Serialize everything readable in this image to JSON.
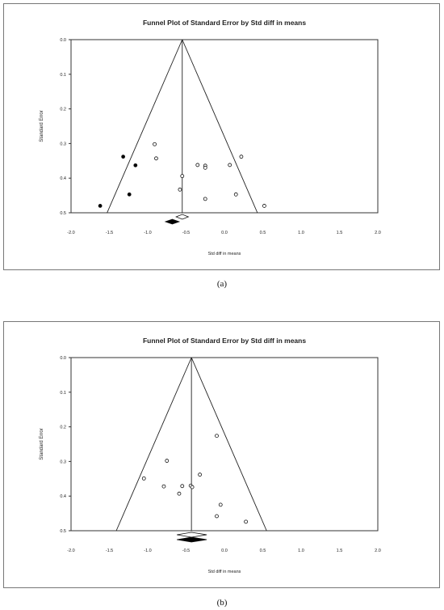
{
  "chart_data": [
    {
      "type": "scatter",
      "title": "Funnel Plot of Standard Error by Std diff in means",
      "xlabel": "Std diff in means",
      "ylabel": "Standard Error",
      "xlim": [
        -2.0,
        2.0
      ],
      "ylim": [
        0.0,
        0.5
      ],
      "y_inverted": true,
      "xticks": [
        "-2.0",
        "-1.5",
        "-1.0",
        "-0.5",
        "0.0",
        "0.5",
        "1.0",
        "1.5",
        "2.0"
      ],
      "yticks": [
        "0.0",
        "0.1",
        "0.2",
        "0.3",
        "0.4",
        "0.5"
      ],
      "grid": false,
      "summary_effect": -0.55,
      "funnel_base": [
        -1.53,
        0.43
      ],
      "summary_diamond_observed": {
        "center": -0.55,
        "low": -0.63,
        "high": -0.47,
        "fill": "#ffffff"
      },
      "summary_diamond_imputed": {
        "center": -0.68,
        "low": -0.77,
        "high": -0.59,
        "fill": "#000000"
      },
      "series": [
        {
          "style": "open",
          "x": [
            -0.91,
            -0.89,
            -0.35,
            -0.25,
            -0.25,
            -0.55,
            -0.58,
            -0.25,
            0.07,
            0.22,
            0.15,
            0.52
          ],
          "y": [
            0.302,
            0.343,
            0.362,
            0.364,
            0.37,
            0.394,
            0.433,
            0.46,
            0.362,
            0.338,
            0.447,
            0.48
          ]
        },
        {
          "style": "filled",
          "x": [
            -1.32,
            -1.16,
            -1.24,
            -1.62
          ],
          "y": [
            0.338,
            0.363,
            0.447,
            0.48
          ]
        }
      ]
    },
    {
      "type": "scatter",
      "title": "Funnel Plot of Standard Error by Std diff in means",
      "xlabel": "Std diff in means",
      "ylabel": "Standard Error",
      "xlim": [
        -2.0,
        2.0
      ],
      "ylim": [
        0.0,
        0.5
      ],
      "y_inverted": true,
      "xticks": [
        "-2.0",
        "-1.5",
        "-1.0",
        "-0.5",
        "0.0",
        "0.5",
        "1.0",
        "1.5",
        "2.0"
      ],
      "yticks": [
        "0.0",
        "0.1",
        "0.2",
        "0.3",
        "0.4",
        "0.5"
      ],
      "grid": false,
      "summary_effect": -0.43,
      "funnel_base": [
        -1.41,
        0.55
      ],
      "summary_diamond_observed": {
        "center": -0.43,
        "low": -0.62,
        "high": -0.23,
        "fill": "#ffffff"
      },
      "summary_diamond_imputed": {
        "center": -0.43,
        "low": -0.62,
        "high": -0.23,
        "fill": "#000000"
      },
      "series": [
        {
          "style": "open",
          "x": [
            -0.1,
            -0.75,
            -1.05,
            -0.32,
            -0.79,
            -0.55,
            -0.44,
            -0.42,
            -0.59,
            -0.05,
            -0.1,
            0.28
          ],
          "y": [
            0.226,
            0.298,
            0.349,
            0.338,
            0.372,
            0.371,
            0.37,
            0.374,
            0.393,
            0.425,
            0.458,
            0.474
          ]
        }
      ]
    }
  ],
  "captions": [
    "(a)",
    "(b)"
  ]
}
